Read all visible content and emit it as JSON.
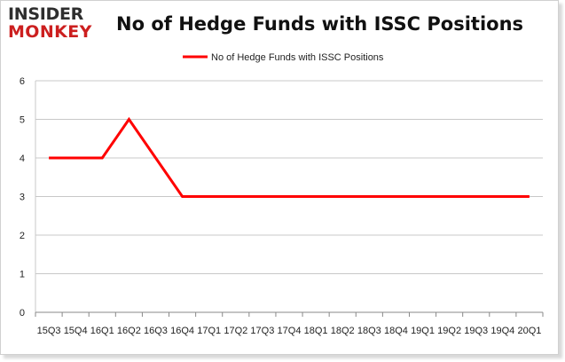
{
  "logo": {
    "line1": "INSIDER",
    "line2": "MONKEY"
  },
  "chart_data": {
    "type": "line",
    "title": "No of Hedge Funds with ISSC Positions",
    "categories": [
      "15Q3",
      "15Q4",
      "16Q1",
      "16Q2",
      "16Q3",
      "16Q4",
      "17Q1",
      "17Q2",
      "17Q3",
      "17Q4",
      "18Q1",
      "18Q2",
      "18Q3",
      "18Q4",
      "19Q1",
      "19Q2",
      "19Q3",
      "19Q4",
      "20Q1"
    ],
    "series": [
      {
        "name": "No of Hedge Funds with ISSC Positions",
        "values": [
          4,
          4,
          4,
          5,
          4,
          3,
          3,
          3,
          3,
          3,
          3,
          3,
          3,
          3,
          3,
          3,
          3,
          3,
          3
        ],
        "color": "#ff0000"
      }
    ],
    "ylim": [
      0,
      6
    ],
    "yticks": [
      0,
      1,
      2,
      3,
      4,
      5,
      6
    ],
    "grid": true,
    "legend": "top-center",
    "xlabel": "",
    "ylabel": ""
  }
}
